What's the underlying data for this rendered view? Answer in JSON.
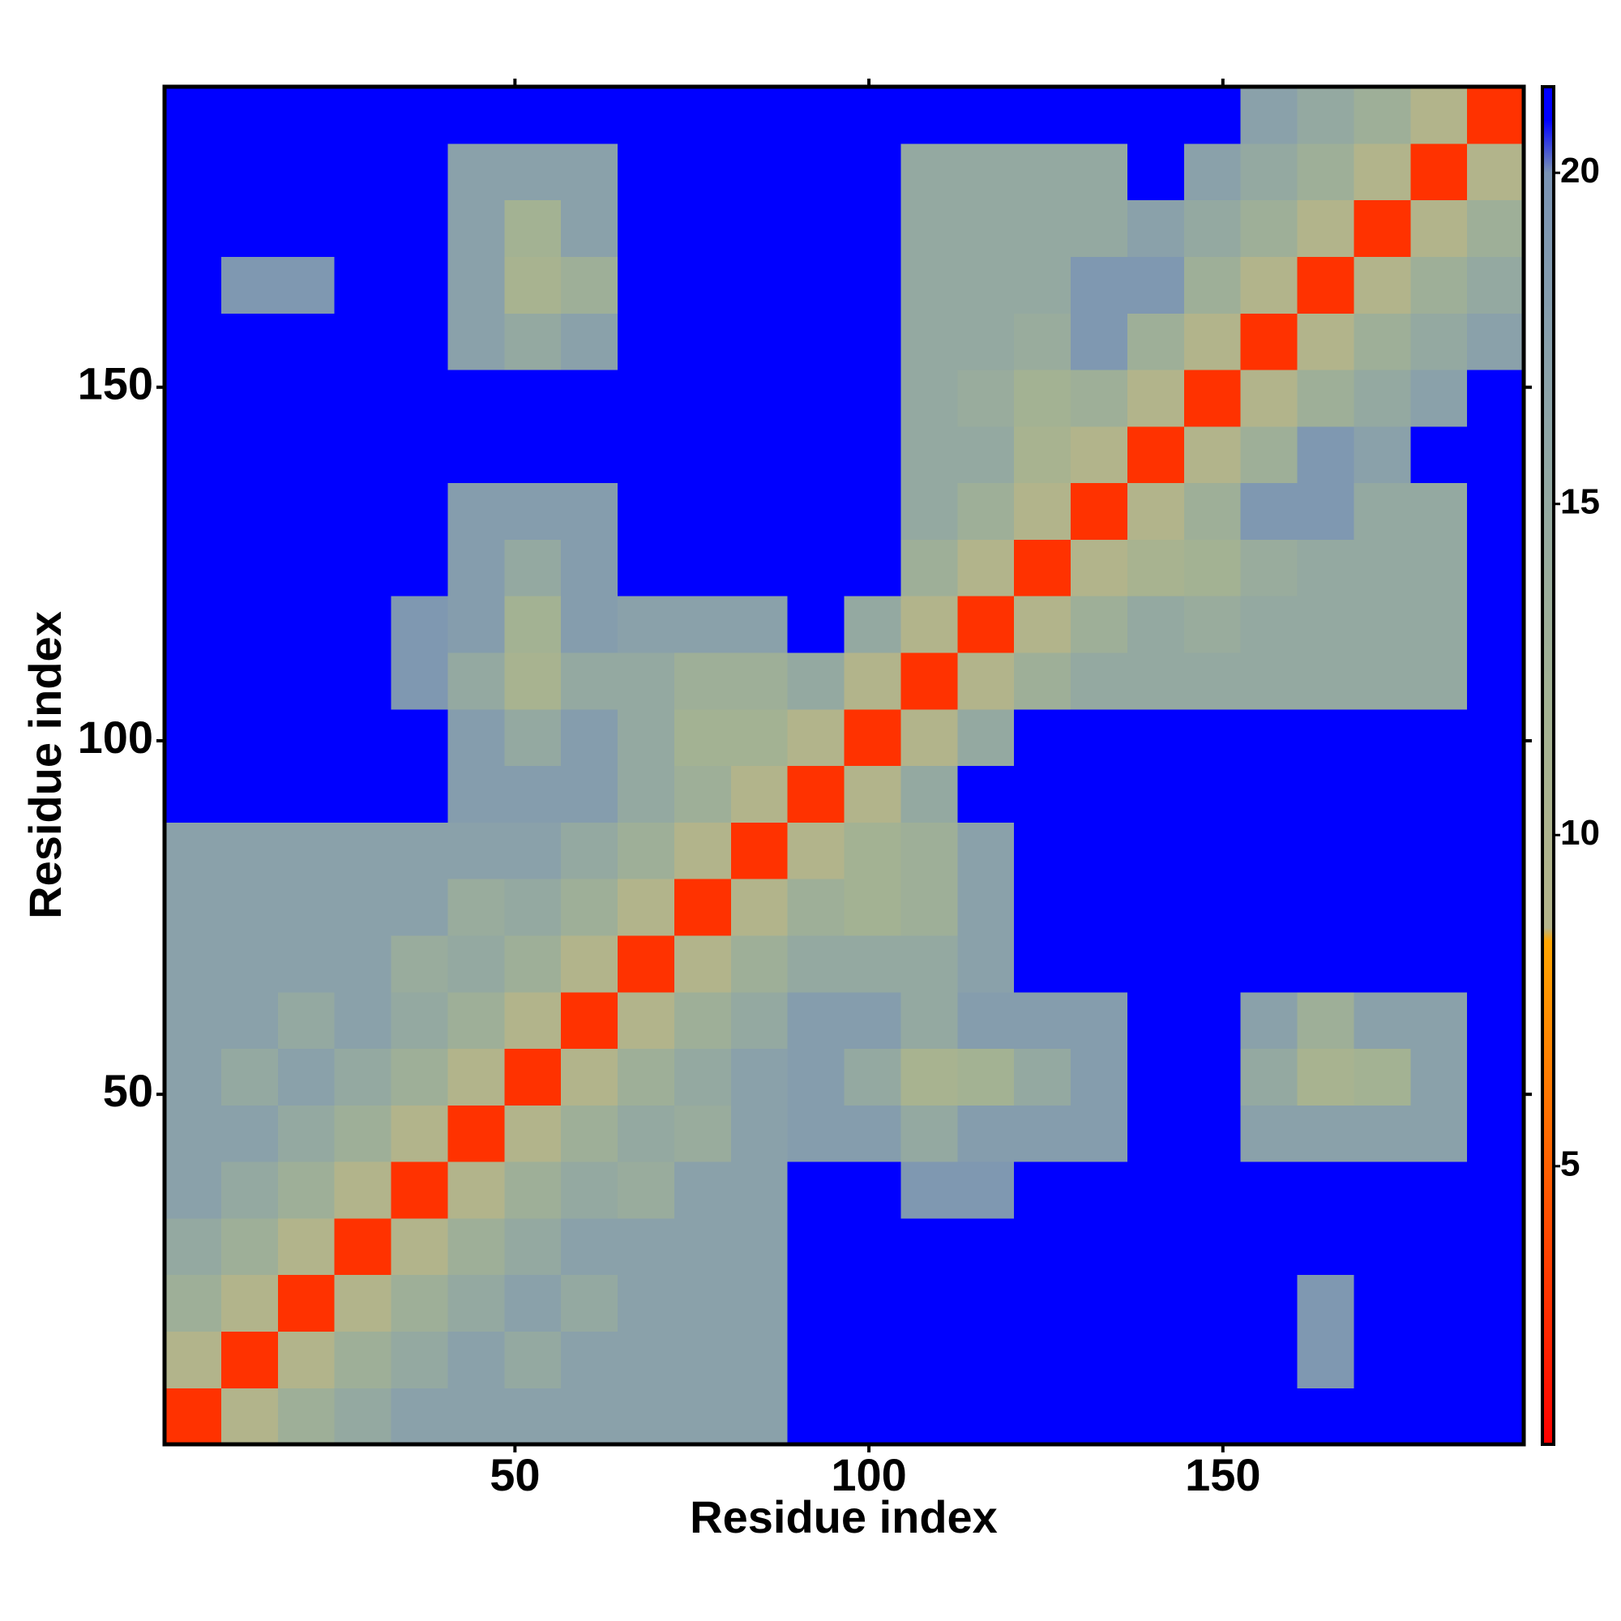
{
  "chart_data": {
    "type": "heatmap",
    "x_label": "Residue index",
    "y_label": "Residue index",
    "xlim": [
      0.5,
      192.5
    ],
    "ylim": [
      0.5,
      192.5
    ],
    "xticks": [
      50,
      100,
      150
    ],
    "yticks": [
      50,
      100,
      150
    ],
    "x": [
      4.5,
      12.5,
      20.5,
      28.5,
      36.5,
      44.5,
      52.5,
      60.5,
      68.5,
      76.5,
      84.5,
      92.5,
      100.5,
      108.5,
      116.5,
      124.5,
      132.5,
      140.5,
      148.5,
      156.5,
      164.5,
      172.5,
      180.5,
      188.5
    ],
    "y": [
      4.5,
      12.5,
      20.5,
      28.5,
      36.5,
      44.5,
      52.5,
      60.5,
      68.5,
      76.5,
      84.5,
      92.5,
      100.5,
      108.5,
      116.5,
      124.5,
      132.5,
      140.5,
      148.5,
      156.5,
      164.5,
      172.5,
      180.5,
      188.5
    ],
    "z": [
      [
        3,
        9,
        13,
        15,
        17,
        17,
        17,
        17,
        17,
        17,
        17,
        21,
        21,
        21,
        21,
        21,
        21,
        21,
        21,
        21,
        21,
        21,
        21,
        21
      ],
      [
        9,
        3,
        9,
        13,
        15,
        17,
        15,
        17,
        17,
        17,
        17,
        21,
        21,
        21,
        21,
        21,
        21,
        21,
        21,
        21,
        19,
        21,
        21,
        21
      ],
      [
        13,
        9,
        3,
        9,
        13,
        15,
        17,
        15,
        17,
        17,
        17,
        21,
        21,
        21,
        21,
        21,
        21,
        21,
        21,
        21,
        19,
        21,
        21,
        21
      ],
      [
        15,
        13,
        9,
        3,
        9,
        13,
        15,
        17,
        17,
        17,
        17,
        21,
        21,
        21,
        21,
        21,
        21,
        21,
        21,
        21,
        21,
        21,
        21,
        21
      ],
      [
        17,
        15,
        13,
        9,
        3,
        9,
        13,
        15,
        14,
        17,
        17,
        21,
        21,
        19,
        19,
        21,
        21,
        21,
        21,
        21,
        21,
        21,
        21,
        21
      ],
      [
        17,
        17,
        15,
        13,
        9,
        3,
        9,
        13,
        15,
        14,
        17,
        18,
        18,
        15,
        18,
        18,
        18,
        21,
        21,
        17,
        17,
        17,
        17,
        21
      ],
      [
        17,
        15,
        17,
        15,
        13,
        9,
        3,
        9,
        13,
        15,
        17,
        18,
        15,
        11,
        12,
        15,
        18,
        21,
        21,
        15,
        11,
        12,
        17,
        21
      ],
      [
        17,
        17,
        15,
        17,
        15,
        13,
        9,
        3,
        9,
        13,
        15,
        18,
        18,
        15,
        18,
        18,
        18,
        21,
        21,
        17,
        13,
        17,
        17,
        21
      ],
      [
        17,
        17,
        17,
        17,
        14,
        15,
        13,
        9,
        3,
        9,
        13,
        15,
        15,
        15,
        17,
        21,
        21,
        21,
        21,
        21,
        21,
        21,
        21,
        21
      ],
      [
        17,
        17,
        17,
        17,
        17,
        14,
        15,
        13,
        9,
        3,
        9,
        13,
        12,
        13,
        17,
        21,
        21,
        21,
        21,
        21,
        21,
        21,
        21,
        21
      ],
      [
        17,
        17,
        17,
        17,
        17,
        17,
        17,
        15,
        13,
        9,
        3,
        9,
        12,
        13,
        17,
        21,
        21,
        21,
        21,
        21,
        21,
        21,
        21,
        21
      ],
      [
        21,
        21,
        21,
        21,
        21,
        18,
        18,
        18,
        15,
        13,
        9,
        3,
        9,
        15,
        21,
        21,
        21,
        21,
        21,
        21,
        21,
        21,
        21,
        21
      ],
      [
        21,
        21,
        21,
        21,
        21,
        18,
        15,
        18,
        15,
        12,
        12,
        9,
        3,
        9,
        15,
        21,
        21,
        21,
        21,
        21,
        21,
        21,
        21,
        21
      ],
      [
        21,
        21,
        21,
        21,
        19,
        15,
        11,
        15,
        15,
        13,
        13,
        15,
        9,
        3,
        9,
        13,
        15,
        15,
        15,
        15,
        15,
        15,
        15,
        21
      ],
      [
        21,
        21,
        21,
        21,
        19,
        18,
        12,
        18,
        17,
        17,
        17,
        21,
        15,
        9,
        3,
        9,
        13,
        15,
        14,
        15,
        15,
        15,
        15,
        21
      ],
      [
        21,
        21,
        21,
        21,
        21,
        18,
        15,
        18,
        21,
        21,
        21,
        21,
        21,
        13,
        9,
        3,
        9,
        11,
        12,
        14,
        15,
        15,
        15,
        21
      ],
      [
        21,
        21,
        21,
        21,
        21,
        18,
        18,
        18,
        21,
        21,
        21,
        21,
        21,
        15,
        13,
        9,
        3,
        9,
        13,
        19,
        19,
        15,
        15,
        21
      ],
      [
        21,
        21,
        21,
        21,
        21,
        21,
        21,
        21,
        21,
        21,
        21,
        21,
        21,
        15,
        15,
        11,
        9,
        3,
        9,
        13,
        19,
        17,
        21,
        21
      ],
      [
        21,
        21,
        21,
        21,
        21,
        21,
        21,
        21,
        21,
        21,
        21,
        21,
        21,
        15,
        14,
        12,
        13,
        9,
        3,
        9,
        13,
        15,
        17,
        21
      ],
      [
        21,
        21,
        21,
        21,
        21,
        17,
        15,
        17,
        21,
        21,
        21,
        21,
        21,
        15,
        15,
        14,
        19,
        13,
        9,
        3,
        9,
        13,
        15,
        17
      ],
      [
        21,
        19,
        19,
        21,
        21,
        17,
        11,
        13,
        21,
        21,
        21,
        21,
        21,
        15,
        15,
        15,
        19,
        19,
        13,
        9,
        3,
        9,
        13,
        15
      ],
      [
        21,
        21,
        21,
        21,
        21,
        17,
        12,
        17,
        21,
        21,
        21,
        21,
        21,
        15,
        15,
        15,
        15,
        17,
        15,
        13,
        9,
        3,
        9,
        13
      ],
      [
        21,
        21,
        21,
        21,
        21,
        17,
        17,
        17,
        21,
        21,
        21,
        21,
        21,
        15,
        15,
        15,
        15,
        21,
        17,
        15,
        13,
        9,
        3,
        9
      ],
      [
        21,
        21,
        21,
        21,
        21,
        21,
        21,
        21,
        21,
        21,
        21,
        21,
        21,
        21,
        21,
        21,
        21,
        21,
        21,
        17,
        15,
        13,
        9,
        3
      ]
    ],
    "zlim": [
      0.8,
      21.3
    ],
    "zticks": [
      5,
      10,
      15,
      20
    ],
    "colorscale": [
      [
        0.8,
        "#ff0000"
      ],
      [
        5,
        "#ff6000"
      ],
      [
        8.4,
        "#ffa500"
      ],
      [
        8.6,
        "#b4b48a"
      ],
      [
        12,
        "#a3b293"
      ],
      [
        16,
        "#8fa6a6"
      ],
      [
        20,
        "#7a93b4"
      ],
      [
        20.8,
        "#0000ff"
      ],
      [
        21.3,
        "#0000ff"
      ]
    ]
  }
}
